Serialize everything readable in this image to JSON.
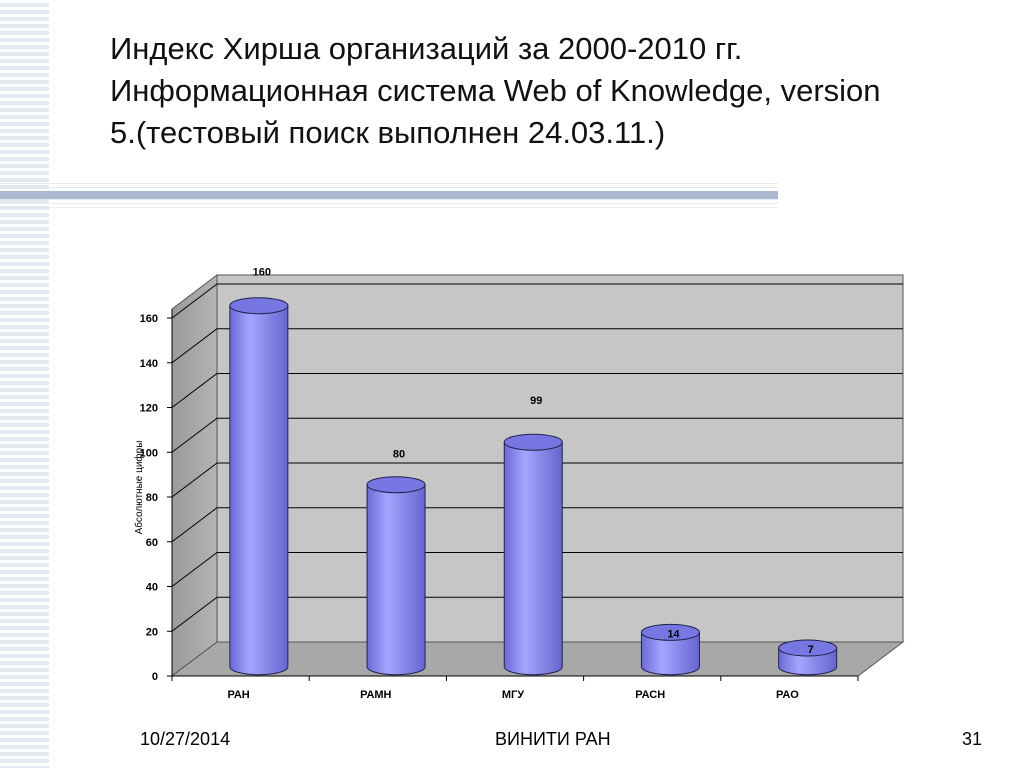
{
  "slide": {
    "title_lines": [
      "Индекс Хирша организаций за 2000-2010 гг.",
      "Информационная система  Web of Knowledge, version",
      "5.(тестовый поиск выполнен 24.03.11.)"
    ],
    "footer": {
      "date": "10/27/2014",
      "center": "ВИНИТИ РАН",
      "page": "31"
    }
  },
  "chart_data": {
    "type": "bar",
    "style": "3d-cylinder",
    "title": "",
    "xlabel": "",
    "ylabel": "Абсолютные цифры",
    "categories": [
      "РАН",
      "РАМН",
      "МГУ",
      "РАСН",
      "РАО"
    ],
    "values": [
      160,
      80,
      99,
      14,
      7
    ],
    "data_labels": [
      "160",
      "80",
      "99",
      "14",
      "7"
    ],
    "ylim": [
      0,
      160
    ],
    "yticks": [
      0,
      20,
      40,
      60,
      80,
      100,
      120,
      140,
      160
    ],
    "grid": true,
    "legend": "none",
    "colors": {
      "bar": "#8f8ff0",
      "wall": "#c6c6c6",
      "floor": "#a8a8a8",
      "grid": "#000000"
    }
  }
}
